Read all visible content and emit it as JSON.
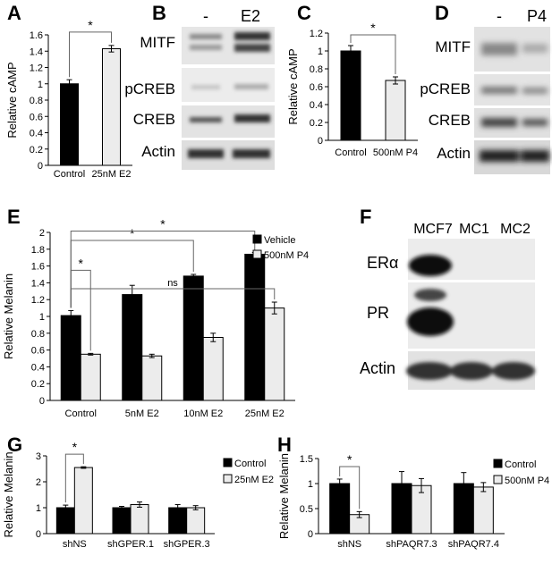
{
  "figure": {
    "panels": {
      "A": {
        "letter": "A"
      },
      "B": {
        "letter": "B",
        "lane_labels": [
          "-",
          "E2"
        ],
        "rows": [
          "MITF",
          "pCREB",
          "CREB",
          "Actin"
        ]
      },
      "C": {
        "letter": "C"
      },
      "D": {
        "letter": "D",
        "lane_labels": [
          "-",
          "P4"
        ],
        "rows": [
          "MITF",
          "pCREB",
          "CREB",
          "Actin"
        ]
      },
      "E": {
        "letter": "E"
      },
      "F": {
        "letter": "F",
        "lane_labels": [
          "MCF7",
          "MC1",
          "MC2"
        ],
        "rows": [
          "ERα",
          "PR",
          "Actin"
        ]
      },
      "G": {
        "letter": "G"
      },
      "H": {
        "letter": "H"
      }
    }
  },
  "colors": {
    "dark_bar": "#000000",
    "light_bar": "#ececec",
    "bar_stroke": "#000000"
  },
  "chart_data": [
    {
      "id": "A",
      "type": "bar",
      "categories": [
        "Control",
        "25nM E2"
      ],
      "values": [
        1.0,
        1.43
      ],
      "errors": [
        0.05,
        0.04
      ],
      "fills": [
        "dark",
        "light"
      ],
      "ylabel": "Relative cAMP",
      "ylim": [
        0,
        1.6
      ],
      "yticks": [
        "0",
        "0.2",
        "0.4",
        "0.6",
        "0.8",
        "1",
        "1.2",
        "1.4",
        "1.6"
      ],
      "significance": [
        {
          "text": "*",
          "from": 0,
          "to": 1
        }
      ]
    },
    {
      "id": "C",
      "type": "bar",
      "categories": [
        "Control",
        "500nM P4"
      ],
      "values": [
        1.0,
        0.67
      ],
      "errors": [
        0.06,
        0.04
      ],
      "fills": [
        "dark",
        "light"
      ],
      "ylabel": "Relative cAMP",
      "ylim": [
        0,
        1.2
      ],
      "yticks": [
        "0",
        "0.2",
        "0.4",
        "0.6",
        "0.8",
        "1",
        "1.2"
      ],
      "significance": [
        {
          "text": "*",
          "from": 0,
          "to": 1
        }
      ]
    },
    {
      "id": "E",
      "type": "bar",
      "categories": [
        "Control",
        "5nM E2",
        "10nM E2",
        "25nM E2"
      ],
      "series": [
        {
          "name": "Vehicle",
          "values": [
            1.01,
            1.26,
            1.48,
            1.74
          ],
          "errors": [
            0.06,
            0.11,
            0.02,
            0.02
          ]
        },
        {
          "name": "500nM P4",
          "values": [
            0.55,
            0.53,
            0.75,
            1.1
          ],
          "errors": [
            0.01,
            0.02,
            0.05,
            0.07
          ]
        }
      ],
      "ylabel": "Relative Melanin",
      "ylim": [
        0,
        2
      ],
      "yticks": [
        "0",
        "0.2",
        "0.4",
        "0.6",
        "0.8",
        "1",
        "1.2",
        "1.4",
        "1.6",
        "1.8",
        "2"
      ],
      "legend": "top-right",
      "significance": [
        {
          "text": "*",
          "from": "Control.Vehicle",
          "to": "Control.500nM P4"
        },
        {
          "text": "*",
          "from": "Control.Vehicle",
          "to": "10nM E2.Vehicle"
        },
        {
          "text": "*",
          "from": "Control.Vehicle",
          "to": "25nM E2.Vehicle"
        },
        {
          "text": "ns",
          "from": "Control.Vehicle",
          "to": "25nM E2.500nM P4"
        }
      ]
    },
    {
      "id": "G",
      "type": "bar",
      "categories": [
        "shNS",
        "shGPER.1",
        "shGPER.3"
      ],
      "series": [
        {
          "name": "Control",
          "values": [
            1.0,
            1.0,
            1.0
          ],
          "errors": [
            0.1,
            0.05,
            0.12
          ]
        },
        {
          "name": "25nM E2",
          "values": [
            2.55,
            1.12,
            1.0
          ],
          "errors": [
            0.03,
            0.1,
            0.08
          ]
        }
      ],
      "ylabel": "Relative Melanin",
      "ylim": [
        0,
        3
      ],
      "yticks": [
        "0",
        "1",
        "2",
        "3"
      ],
      "legend": "top-right",
      "significance": [
        {
          "text": "*",
          "from": "shNS.Control",
          "to": "shNS.25nM E2"
        }
      ]
    },
    {
      "id": "H",
      "type": "bar",
      "categories": [
        "shNS",
        "shPAQR7.3",
        "shPAQR7.4"
      ],
      "series": [
        {
          "name": "Control",
          "values": [
            1.0,
            1.0,
            1.0
          ],
          "errors": [
            0.09,
            0.24,
            0.22
          ]
        },
        {
          "name": "500nM P4",
          "values": [
            0.38,
            0.96,
            0.93
          ],
          "errors": [
            0.06,
            0.14,
            0.09
          ]
        }
      ],
      "ylabel": "Relative Melanin",
      "ylim": [
        0,
        1.5
      ],
      "yticks": [
        "0",
        "0.5",
        "1",
        "1.5"
      ],
      "legend": "top-right",
      "significance": [
        {
          "text": "*",
          "from": "shNS.Control",
          "to": "shNS.500nM P4"
        }
      ]
    }
  ]
}
